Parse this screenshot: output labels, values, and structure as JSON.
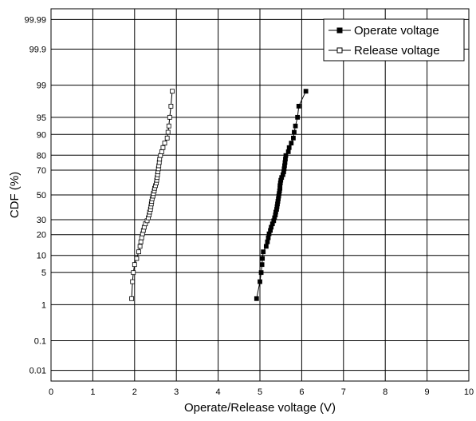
{
  "chart_data": {
    "type": "scatter",
    "title": "",
    "xlabel": "Operate/Release voltage  (V)",
    "ylabel": "CDF  (%)",
    "xlim": [
      0,
      10
    ],
    "x_ticks": [
      "0",
      "1",
      "2",
      "3",
      "4",
      "5",
      "6",
      "7",
      "8",
      "9",
      "10"
    ],
    "y_scale": "normal-probability",
    "y_ticks": [
      {
        "value": 0.01,
        "label": "0.01"
      },
      {
        "value": 0.1,
        "label": "0.1"
      },
      {
        "value": 1,
        "label": "1"
      },
      {
        "value": 5,
        "label": "5"
      },
      {
        "value": 10,
        "label": "10"
      },
      {
        "value": 20,
        "label": "20"
      },
      {
        "value": 30,
        "label": "30"
      },
      {
        "value": 50,
        "label": "50"
      },
      {
        "value": 70,
        "label": "70"
      },
      {
        "value": 80,
        "label": "80"
      },
      {
        "value": 90,
        "label": "90"
      },
      {
        "value": 95,
        "label": "95"
      },
      {
        "value": 99,
        "label": "99"
      },
      {
        "value": 99.9,
        "label": "99.9"
      },
      {
        "value": 99.99,
        "label": "99.99"
      }
    ],
    "grid": true,
    "legend_position": "top-right",
    "series": [
      {
        "name": "Operate voltage",
        "marker": "filled-square",
        "color": "#000000",
        "points": [
          [
            4.92,
            1.4
          ],
          [
            5.0,
            3.3
          ],
          [
            5.03,
            5.0
          ],
          [
            5.05,
            7.0
          ],
          [
            5.06,
            8.9
          ],
          [
            5.08,
            11.4
          ],
          [
            5.15,
            13.8
          ],
          [
            5.18,
            16.0
          ],
          [
            5.2,
            18.2
          ],
          [
            5.22,
            20.5
          ],
          [
            5.25,
            22.6
          ],
          [
            5.27,
            24.7
          ],
          [
            5.3,
            27.0
          ],
          [
            5.33,
            29.2
          ],
          [
            5.35,
            31.4
          ],
          [
            5.37,
            33.6
          ],
          [
            5.38,
            35.8
          ],
          [
            5.4,
            38.0
          ],
          [
            5.41,
            40.2
          ],
          [
            5.42,
            42.4
          ],
          [
            5.43,
            44.6
          ],
          [
            5.44,
            46.8
          ],
          [
            5.45,
            49.0
          ],
          [
            5.46,
            51.2
          ],
          [
            5.47,
            53.4
          ],
          [
            5.48,
            55.6
          ],
          [
            5.48,
            57.8
          ],
          [
            5.49,
            60.0
          ],
          [
            5.5,
            62.2
          ],
          [
            5.52,
            64.4
          ],
          [
            5.55,
            66.6
          ],
          [
            5.57,
            68.8
          ],
          [
            5.58,
            71.0
          ],
          [
            5.59,
            73.2
          ],
          [
            5.6,
            75.4
          ],
          [
            5.61,
            77.6
          ],
          [
            5.62,
            79.8
          ],
          [
            5.68,
            82.0
          ],
          [
            5.7,
            84.2
          ],
          [
            5.75,
            86.4
          ],
          [
            5.8,
            88.6
          ],
          [
            5.82,
            90.8
          ],
          [
            5.85,
            92.8
          ],
          [
            5.9,
            95.0
          ],
          [
            5.93,
            97.0
          ],
          [
            6.1,
            98.6
          ]
        ]
      },
      {
        "name": "Release voltage",
        "marker": "open-square",
        "color": "#000000",
        "points": [
          [
            1.93,
            1.4
          ],
          [
            1.95,
            3.3
          ],
          [
            1.97,
            5.0
          ],
          [
            2.0,
            7.0
          ],
          [
            2.05,
            8.9
          ],
          [
            2.1,
            11.4
          ],
          [
            2.13,
            13.8
          ],
          [
            2.15,
            16.0
          ],
          [
            2.17,
            18.2
          ],
          [
            2.19,
            20.5
          ],
          [
            2.21,
            22.6
          ],
          [
            2.23,
            24.7
          ],
          [
            2.26,
            27.0
          ],
          [
            2.3,
            29.2
          ],
          [
            2.33,
            31.4
          ],
          [
            2.35,
            33.6
          ],
          [
            2.36,
            35.8
          ],
          [
            2.38,
            38.0
          ],
          [
            2.39,
            40.2
          ],
          [
            2.4,
            42.4
          ],
          [
            2.41,
            44.6
          ],
          [
            2.42,
            46.8
          ],
          [
            2.44,
            49.0
          ],
          [
            2.45,
            51.2
          ],
          [
            2.47,
            53.4
          ],
          [
            2.48,
            55.6
          ],
          [
            2.5,
            57.8
          ],
          [
            2.52,
            60.0
          ],
          [
            2.53,
            62.2
          ],
          [
            2.54,
            64.4
          ],
          [
            2.55,
            66.6
          ],
          [
            2.56,
            68.8
          ],
          [
            2.57,
            71.0
          ],
          [
            2.58,
            73.2
          ],
          [
            2.59,
            75.4
          ],
          [
            2.6,
            77.6
          ],
          [
            2.62,
            79.8
          ],
          [
            2.65,
            82.0
          ],
          [
            2.68,
            84.2
          ],
          [
            2.72,
            86.4
          ],
          [
            2.78,
            88.6
          ],
          [
            2.8,
            90.8
          ],
          [
            2.82,
            92.8
          ],
          [
            2.84,
            95.0
          ],
          [
            2.87,
            97.0
          ],
          [
            2.9,
            98.6
          ]
        ]
      }
    ]
  }
}
